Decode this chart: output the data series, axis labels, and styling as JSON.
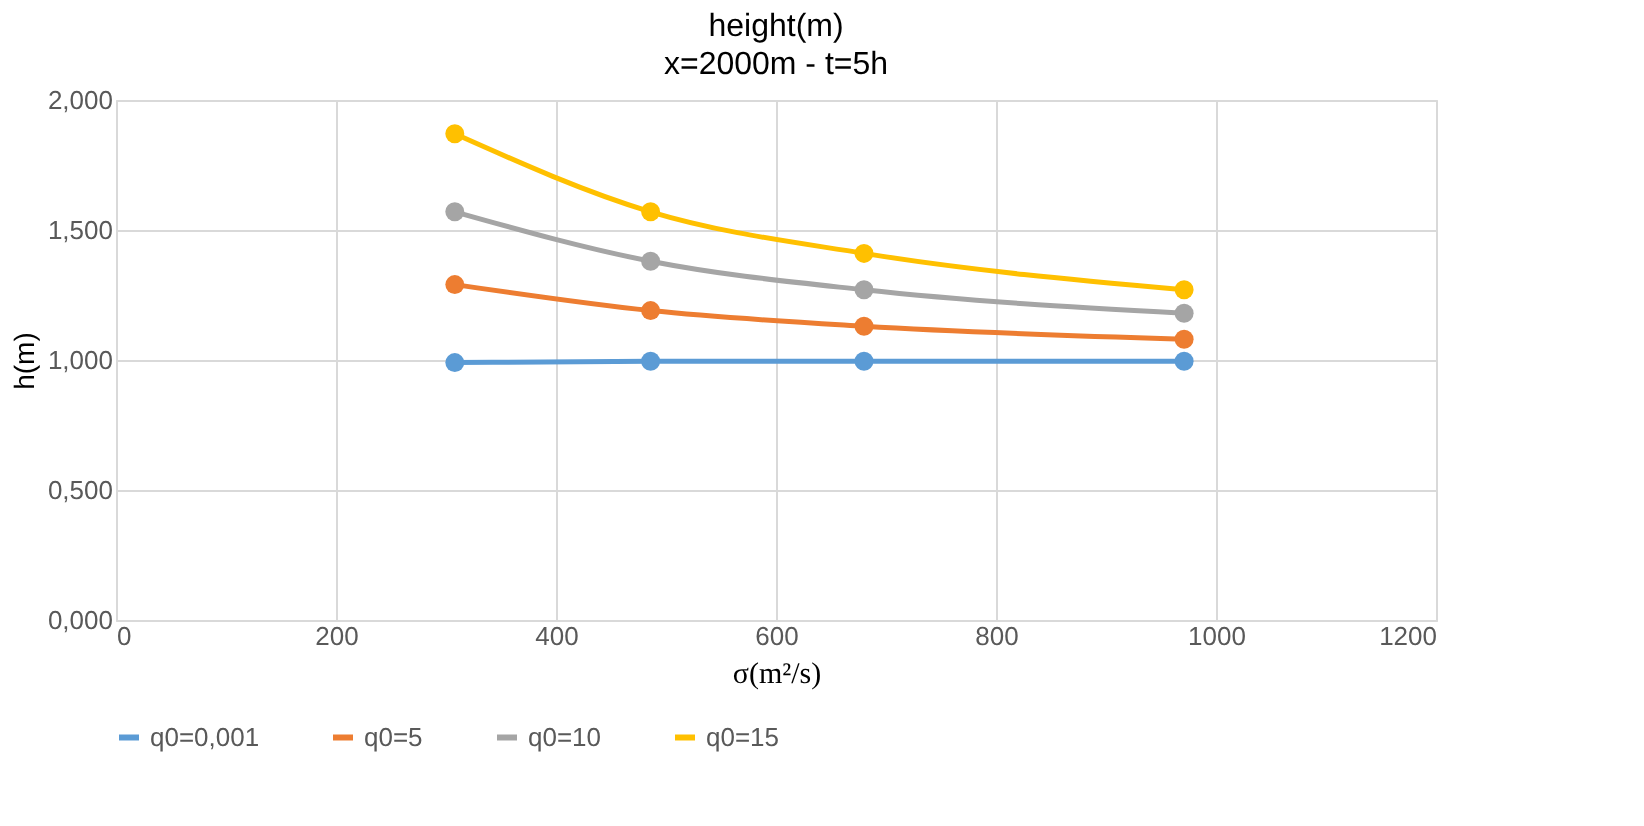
{
  "chart_data": {
    "type": "line",
    "title": "height(m)",
    "subtitle": "x=2000m - t=5h",
    "xlabel": "σ(m²/s)",
    "ylabel": "h(m)",
    "x": [
      308,
      486,
      680,
      971
    ],
    "series": [
      {
        "name": "q0=0,001",
        "color": "#5b9bd5",
        "values": [
          0.99,
          0.995,
          0.995,
          0.995
        ]
      },
      {
        "name": "q0=5",
        "color": "#ed7d31",
        "values": [
          1.29,
          1.19,
          1.13,
          1.08
        ]
      },
      {
        "name": "q0=10",
        "color": "#a5a5a5",
        "values": [
          1.57,
          1.38,
          1.27,
          1.18
        ]
      },
      {
        "name": "q0=15",
        "color": "#ffc000",
        "values": [
          1.87,
          1.57,
          1.41,
          1.27
        ]
      }
    ],
    "xlim": [
      0,
      1200
    ],
    "xticks": [
      0,
      200,
      400,
      600,
      800,
      1000,
      1200
    ],
    "ylim": [
      0,
      2
    ],
    "yticks": [
      {
        "value": 0,
        "label": "0,000"
      },
      {
        "value": 0.5,
        "label": "0,500"
      },
      {
        "value": 1,
        "label": "1,000"
      },
      {
        "value": 1.5,
        "label": "1,500"
      },
      {
        "value": 2,
        "label": "2,000"
      }
    ],
    "grid": true,
    "legend": "bottom",
    "marker": "circle",
    "line_style": "solid"
  }
}
